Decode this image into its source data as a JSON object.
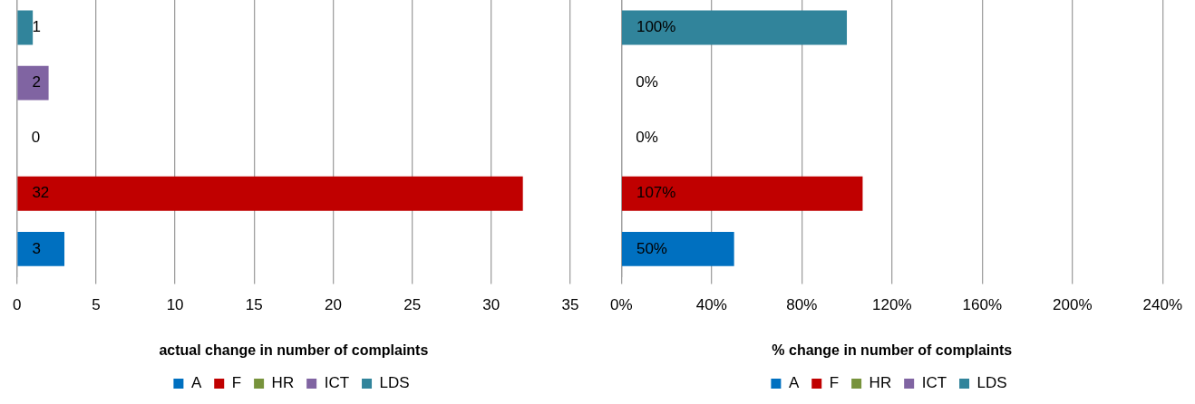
{
  "chart_data": [
    {
      "type": "bar",
      "orientation": "horizontal",
      "categories": [
        null,
        null,
        null,
        null,
        null
      ],
      "series": [
        {
          "name": "A",
          "color": "#0070c0",
          "values": [
            null,
            null,
            null,
            null,
            3
          ]
        },
        {
          "name": "F",
          "color": "#c00000",
          "values": [
            null,
            null,
            null,
            32,
            null
          ]
        },
        {
          "name": "HR",
          "color": "#77933c",
          "values": [
            null,
            null,
            0,
            null,
            null
          ]
        },
        {
          "name": "ICT",
          "color": "#8064a2",
          "values": [
            null,
            2,
            null,
            null,
            null
          ]
        },
        {
          "name": "LDS",
          "color": "#31849b",
          "values": [
            1,
            null,
            null,
            null,
            null
          ]
        }
      ],
      "xlabel": "actual change in number of complaints",
      "xlim": [
        0,
        35
      ],
      "xticks": [
        0,
        5,
        10,
        15,
        20,
        25,
        30,
        35
      ],
      "grid": "x",
      "legend": "bottom",
      "data_labels": true
    },
    {
      "type": "bar",
      "orientation": "horizontal",
      "categories": [
        null,
        null,
        null,
        null,
        null
      ],
      "series": [
        {
          "name": "A",
          "color": "#0070c0",
          "values": [
            null,
            null,
            null,
            null,
            50
          ],
          "value_labels": [
            null,
            null,
            null,
            null,
            "50%"
          ]
        },
        {
          "name": "F",
          "color": "#c00000",
          "values": [
            null,
            null,
            null,
            107,
            null
          ],
          "value_labels": [
            null,
            null,
            null,
            "107%",
            null
          ]
        },
        {
          "name": "HR",
          "color": "#77933c",
          "values": [
            null,
            null,
            0,
            null,
            null
          ],
          "value_labels": [
            null,
            null,
            "0%",
            null,
            null
          ]
        },
        {
          "name": "ICT",
          "color": "#8064a2",
          "values": [
            null,
            0,
            null,
            null,
            null
          ],
          "value_labels": [
            null,
            "0%",
            null,
            null,
            null
          ]
        },
        {
          "name": "LDS",
          "color": "#31849b",
          "values": [
            100,
            null,
            null,
            null,
            null
          ],
          "value_labels": [
            "100%",
            null,
            null,
            null,
            null
          ]
        }
      ],
      "xlabel": "% change in number of complaints",
      "xlim": [
        0,
        240
      ],
      "xticks": [
        {
          "value": 0,
          "label": "0%"
        },
        {
          "value": 40,
          "label": "40%"
        },
        {
          "value": 80,
          "label": "80%"
        },
        {
          "value": 120,
          "label": "120%"
        },
        {
          "value": 160,
          "label": "160%"
        },
        {
          "value": 200,
          "label": "200%"
        },
        {
          "value": 240,
          "label": "240%"
        }
      ],
      "grid": "x",
      "legend": "bottom"
    }
  ]
}
